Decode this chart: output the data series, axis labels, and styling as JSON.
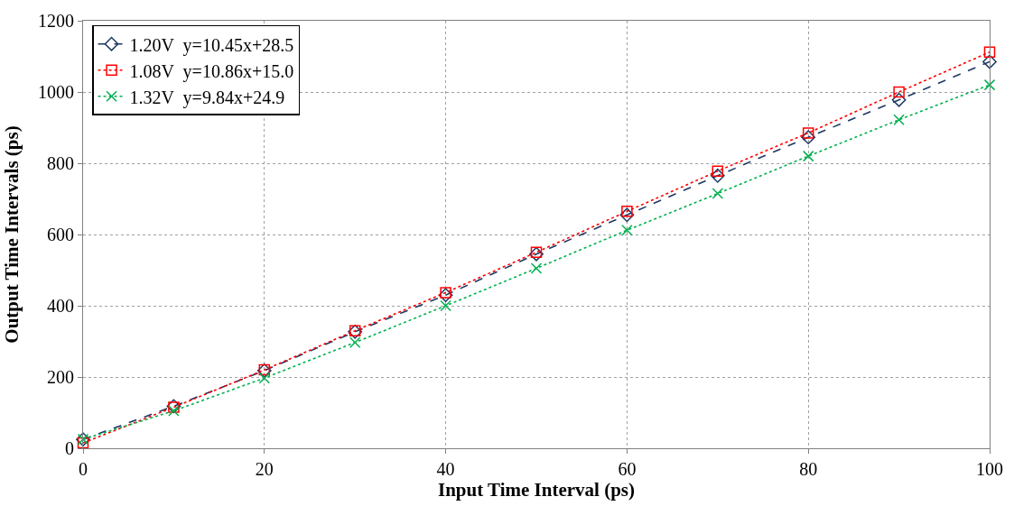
{
  "chart_data": {
    "type": "line",
    "xlabel": "Input Time Interval (ps)",
    "ylabel": "Output Time Intervals (ps)",
    "x": [
      0,
      10,
      20,
      30,
      40,
      50,
      60,
      70,
      80,
      90,
      100
    ],
    "series": [
      {
        "name": "1.20V  y=10.45x+28.5",
        "color": "#1f3864",
        "marker": "diamond",
        "line_style": "dashed",
        "values": [
          25,
          118,
          218,
          327,
          430,
          545,
          655,
          765,
          873,
          978,
          1085
        ]
      },
      {
        "name": "1.08V  y=10.86x+15.0",
        "color": "#ff0000",
        "marker": "square",
        "line_style": "dotted",
        "values": [
          15,
          115,
          220,
          330,
          437,
          550,
          665,
          778,
          885,
          1000,
          1112
        ]
      },
      {
        "name": "1.32V  y=9.84x+24.9",
        "color": "#00b050",
        "marker": "cross",
        "line_style": "dotted",
        "values": [
          25,
          105,
          197,
          297,
          400,
          505,
          612,
          715,
          820,
          922,
          1020
        ]
      }
    ],
    "xlim": [
      0,
      100
    ],
    "xticks": [
      0,
      20,
      40,
      60,
      80,
      100
    ],
    "ylim": [
      0,
      1200
    ],
    "yticks": [
      0,
      200,
      400,
      600,
      800,
      1000,
      1200
    ],
    "grid": true,
    "legend": "top left"
  }
}
